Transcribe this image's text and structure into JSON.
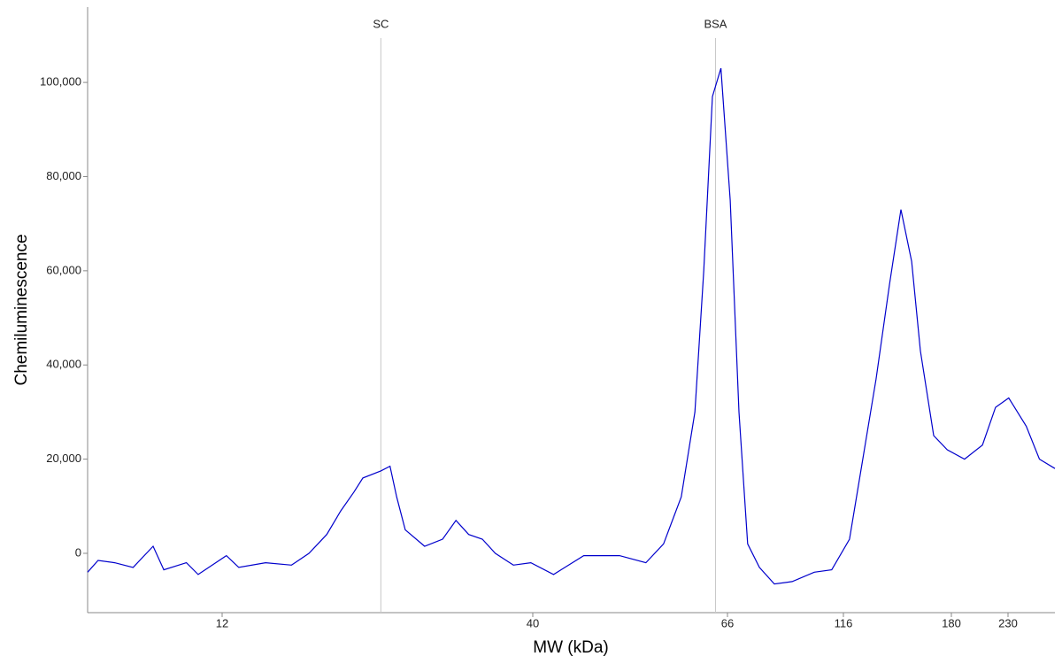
{
  "chart_data": {
    "type": "line",
    "xlabel": "MW (kDa)",
    "ylabel": "Chemiluminescence",
    "xlim": [
      7,
      280
    ],
    "ylim": [
      -12600,
      116000
    ],
    "xticks": [
      12,
      40,
      66,
      116,
      180,
      230
    ],
    "yticks": [
      0,
      {
        "value": 20000,
        "label": "20,000"
      },
      {
        "value": 40000,
        "label": "40,000"
      },
      {
        "value": 60000,
        "label": "60,000"
      },
      {
        "value": 80000,
        "label": "80,000"
      },
      {
        "value": 100000,
        "label": "100,000"
      }
    ],
    "annotations": [
      {
        "x": 22.2,
        "label": "SC"
      },
      {
        "x": 64.0,
        "label": "BSA"
      }
    ],
    "series": [
      {
        "name": "Chemiluminescence",
        "color": "#0000cc",
        "x": [
          7.0,
          7.3,
          7.8,
          8.4,
          9.1,
          9.5,
          10.4,
          10.9,
          12.2,
          12.8,
          14.2,
          15.7,
          16.8,
          18.0,
          19.0,
          20.0,
          20.7,
          22.2,
          23.0,
          23.6,
          24.4,
          26.3,
          28.2,
          29.7,
          31.2,
          32.9,
          34.6,
          37.1,
          39.7,
          42.2,
          45.6,
          50.0,
          53.5,
          56.0,
          58.6,
          60.7,
          62.1,
          63.5,
          64.9,
          66.9,
          69.8,
          72.8,
          77.1,
          82.9,
          90.4,
          100.7,
          109.6,
          118.9,
          125.5,
          132.5,
          139.9,
          146.6,
          153.1,
          158.7,
          167.5,
          177.0,
          190.6,
          205.9,
          217.9,
          230.7,
          248.3,
          262.4,
          280
        ],
        "values": [
          -4000,
          -1500,
          -2000,
          -3000,
          1500,
          -3500,
          -2000,
          -4500,
          -500,
          -3000,
          -2000,
          -2500,
          0,
          4000,
          9000,
          13000,
          16000,
          17500,
          18500,
          12000,
          5000,
          1500,
          3000,
          7000,
          4000,
          3000,
          0,
          -2500,
          -2000,
          -4500,
          -500,
          -500,
          -2000,
          2000,
          12000,
          30000,
          60000,
          97000,
          103000,
          75000,
          30000,
          2000,
          -3000,
          -6500,
          -6000,
          -4000,
          -3500,
          3000,
          20000,
          37000,
          57000,
          73000,
          62000,
          43000,
          25000,
          22000,
          20000,
          23000,
          31000,
          33000,
          27000,
          20000,
          18000
        ]
      }
    ]
  }
}
